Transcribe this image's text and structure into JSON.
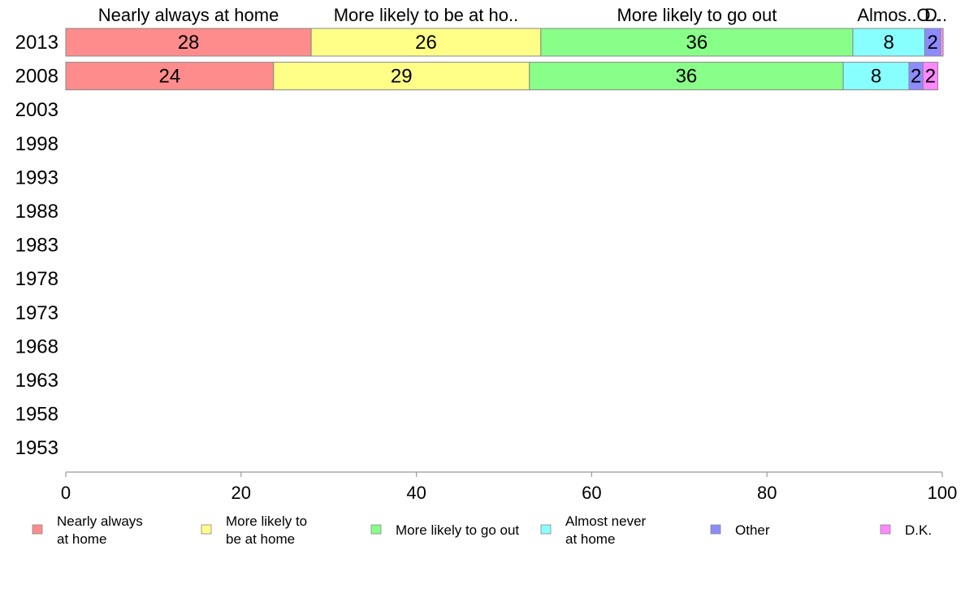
{
  "chart_data": {
    "type": "bar",
    "orientation": "horizontal",
    "stacked": true,
    "categories": [
      "2013",
      "2008",
      "2003",
      "1998",
      "1993",
      "1988",
      "1983",
      "1978",
      "1973",
      "1968",
      "1963",
      "1958",
      "1953"
    ],
    "series": [
      {
        "name": "Nearly always at home",
        "legend": [
          "Nearly always",
          "at home"
        ],
        "header": "Nearly always at home",
        "color": "#FF8C8C",
        "values": [
          28,
          23.7,
          null,
          null,
          null,
          null,
          null,
          null,
          null,
          null,
          null,
          null,
          null
        ],
        "labels": [
          "28",
          "24",
          "",
          "",
          "",
          "",
          "",
          "",
          "",
          "",
          "",
          "",
          ""
        ]
      },
      {
        "name": "More likely to be at home",
        "legend": [
          "More likely to",
          "be at home"
        ],
        "header": "More likely to be at ho..",
        "color": "#FFFF88",
        "values": [
          26.2,
          29.2,
          null,
          null,
          null,
          null,
          null,
          null,
          null,
          null,
          null,
          null,
          null
        ],
        "labels": [
          "26",
          "29",
          "",
          "",
          "",
          "",
          "",
          "",
          "",
          "",
          "",
          "",
          ""
        ]
      },
      {
        "name": "More likely to go out",
        "legend": [
          "More likely to go out"
        ],
        "header": "More likely to go out",
        "color": "#88FF88",
        "values": [
          35.6,
          35.8,
          null,
          null,
          null,
          null,
          null,
          null,
          null,
          null,
          null,
          null,
          null
        ],
        "labels": [
          "36",
          "36",
          "",
          "",
          "",
          "",
          "",
          "",
          "",
          "",
          "",
          "",
          ""
        ]
      },
      {
        "name": "Almost never at home",
        "legend": [
          "Almost never",
          "at home"
        ],
        "header": "Almos..",
        "color": "#88FFFF",
        "values": [
          8.2,
          7.5,
          null,
          null,
          null,
          null,
          null,
          null,
          null,
          null,
          null,
          null,
          null
        ],
        "labels": [
          "8",
          "8",
          "",
          "",
          "",
          "",
          "",
          "",
          "",
          "",
          "",
          "",
          ""
        ]
      },
      {
        "name": "Other",
        "legend": [
          "Other"
        ],
        "header": "O..",
        "color": "#8C8CFF",
        "values": [
          1.8,
          1.6,
          null,
          null,
          null,
          null,
          null,
          null,
          null,
          null,
          null,
          null,
          null
        ],
        "labels": [
          "2",
          "2",
          "",
          "",
          "",
          "",
          "",
          "",
          "",
          "",
          "",
          "",
          ""
        ]
      },
      {
        "name": "D.K.",
        "legend": [
          "D.K."
        ],
        "header": "D..",
        "color": "#FF88FF",
        "values": [
          0.3,
          1.7,
          null,
          null,
          null,
          null,
          null,
          null,
          null,
          null,
          null,
          null,
          null
        ],
        "labels": [
          "",
          "2",
          "",
          "",
          "",
          "",
          "",
          "",
          "",
          "",
          "",
          "",
          ""
        ]
      }
    ],
    "xlim": [
      0,
      100
    ],
    "xticks": [
      0,
      20,
      40,
      60,
      80,
      100
    ],
    "grid": false,
    "legend_position": "bottom",
    "title": "",
    "xlabel": "",
    "ylabel": ""
  }
}
